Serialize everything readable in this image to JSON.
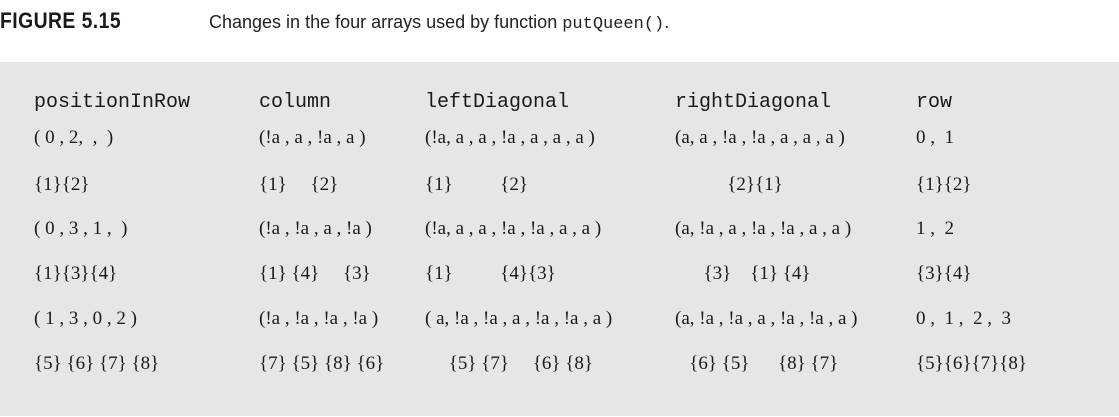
{
  "caption": {
    "label": "FIGURE 5.15",
    "text": "Changes in the four arrays used by function ",
    "code": "putQueen()",
    "suffix": "."
  },
  "table": {
    "headers": [
      "positionInRow",
      "column",
      "leftDiagonal",
      "rightDiagonal",
      "row"
    ],
    "rows": [
      [
        "( 0 , 2,  ,  )",
        "(!a , a , !a , a )",
        "(!a, a , a , !a , a , a , a )",
        "(a, a , !a , !a , a , a , a )",
        "0 ,  1"
      ],
      [
        "{1}{2}",
        "{1}     {2}",
        "{1}          {2}",
        "           {2}{1}",
        "{1}{2}"
      ],
      [
        "( 0 , 3 , 1 ,  )",
        "(!a , !a , a , !a )",
        "(!a, a , a , !a , !a , a , a )",
        "(a, !a , a , !a , !a , a , a )",
        "1 ,  2"
      ],
      [
        "{1}{3}{4}",
        "{1} {4}     {3}",
        "{1}          {4}{3}",
        "      {3}    {1} {4}",
        "{3}{4}"
      ],
      [
        "( 1 , 3 , 0 , 2 )",
        "(!a , !a , !a , !a )",
        "( a, !a , !a , a , !a , !a , a )",
        "(a, !a , !a , a , !a , !a , a )",
        "0 ,  1 ,  2 ,  3"
      ],
      [
        "{5} {6} {7} {8}",
        "{7} {5} {8} {6}",
        "     {5} {7}     {6} {8}",
        "   {6} {5}      {8} {7}",
        "{5}{6}{7}{8}"
      ]
    ]
  }
}
